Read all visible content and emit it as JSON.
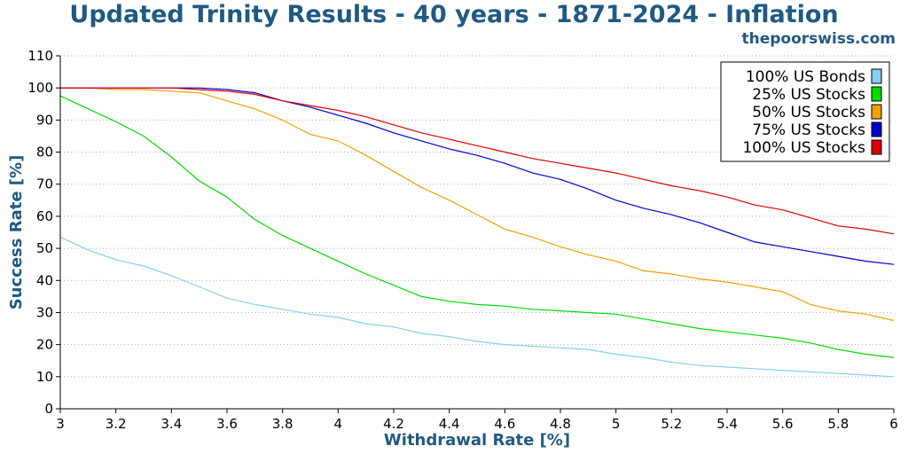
{
  "header": {
    "title": "Updated Trinity Results - 40 years - 1871-2024 - Inflation",
    "subtitle": "thepoorswiss.com"
  },
  "chart_data": {
    "type": "line",
    "title": "Updated Trinity Results - 40 years - 1871-2024 - Inflation",
    "xlabel": "Withdrawal Rate [%]",
    "ylabel": "Success Rate [%]",
    "xlim": [
      3,
      6
    ],
    "ylim": [
      0,
      110
    ],
    "x_ticks": [
      "3",
      "3.2",
      "3.4",
      "3.6",
      "3.8",
      "4",
      "4.2",
      "4.4",
      "4.6",
      "4.8",
      "5",
      "5.2",
      "5.4",
      "5.6",
      "5.8",
      "6"
    ],
    "y_ticks": [
      "0",
      "10",
      "20",
      "30",
      "40",
      "50",
      "60",
      "70",
      "80",
      "90",
      "100",
      "110"
    ],
    "grid": "horizontal dotted",
    "legend_position": "top-right",
    "x": [
      3.0,
      3.1,
      3.2,
      3.3,
      3.4,
      3.5,
      3.6,
      3.7,
      3.8,
      3.9,
      4.0,
      4.1,
      4.2,
      4.3,
      4.4,
      4.5,
      4.6,
      4.7,
      4.8,
      4.9,
      5.0,
      5.1,
      5.2,
      5.3,
      5.4,
      5.5,
      5.6,
      5.7,
      5.8,
      5.9,
      6.0
    ],
    "series": [
      {
        "name": "100% US Bonds",
        "color": "#87ceeb",
        "values": [
          53.5,
          49.5,
          46.5,
          44.5,
          41.5,
          38.0,
          34.5,
          32.5,
          31.0,
          29.5,
          28.5,
          26.5,
          25.5,
          23.5,
          22.5,
          21.0,
          20.0,
          19.5,
          19.0,
          18.5,
          17.0,
          16.0,
          14.5,
          13.5,
          13.0,
          12.5,
          12.0,
          11.5,
          11.0,
          10.5,
          10.0
        ]
      },
      {
        "name": "25% US Stocks",
        "color": "#00dd00",
        "values": [
          97.5,
          93.5,
          89.5,
          85.0,
          78.5,
          71.0,
          66.0,
          59.0,
          54.0,
          50.0,
          46.0,
          42.0,
          38.5,
          35.0,
          33.5,
          32.5,
          32.0,
          31.0,
          30.5,
          30.0,
          29.5,
          28.0,
          26.5,
          25.0,
          24.0,
          23.0,
          22.0,
          20.5,
          18.5,
          17.0,
          16.0
        ]
      },
      {
        "name": "50% US Stocks",
        "color": "#f0a000",
        "values": [
          100.0,
          100.0,
          99.5,
          99.5,
          99.0,
          98.5,
          96.0,
          93.5,
          90.0,
          85.5,
          83.5,
          79.0,
          74.0,
          69.0,
          65.0,
          60.5,
          56.0,
          53.5,
          50.5,
          48.0,
          46.0,
          43.0,
          42.0,
          40.5,
          39.5,
          38.0,
          36.5,
          32.5,
          30.5,
          29.5,
          27.5
        ]
      },
      {
        "name": "75% US Stocks",
        "color": "#0000cc",
        "values": [
          100.0,
          100.0,
          100.0,
          100.0,
          100.0,
          100.0,
          99.5,
          98.5,
          96.0,
          94.0,
          91.5,
          89.0,
          86.0,
          83.5,
          81.0,
          79.0,
          76.5,
          73.5,
          71.5,
          68.5,
          65.0,
          62.5,
          60.5,
          58.0,
          55.0,
          52.0,
          50.5,
          49.0,
          47.5,
          46.0,
          45.0
        ]
      },
      {
        "name": "100% US Stocks",
        "color": "#dd0000",
        "values": [
          100.0,
          100.0,
          100.0,
          100.0,
          100.0,
          99.5,
          99.0,
          98.0,
          96.0,
          94.5,
          93.0,
          91.0,
          88.5,
          86.0,
          84.0,
          82.0,
          80.0,
          78.0,
          76.5,
          75.0,
          73.5,
          71.5,
          69.5,
          68.0,
          66.0,
          63.5,
          62.0,
          59.5,
          57.0,
          56.0,
          54.5
        ]
      }
    ]
  }
}
